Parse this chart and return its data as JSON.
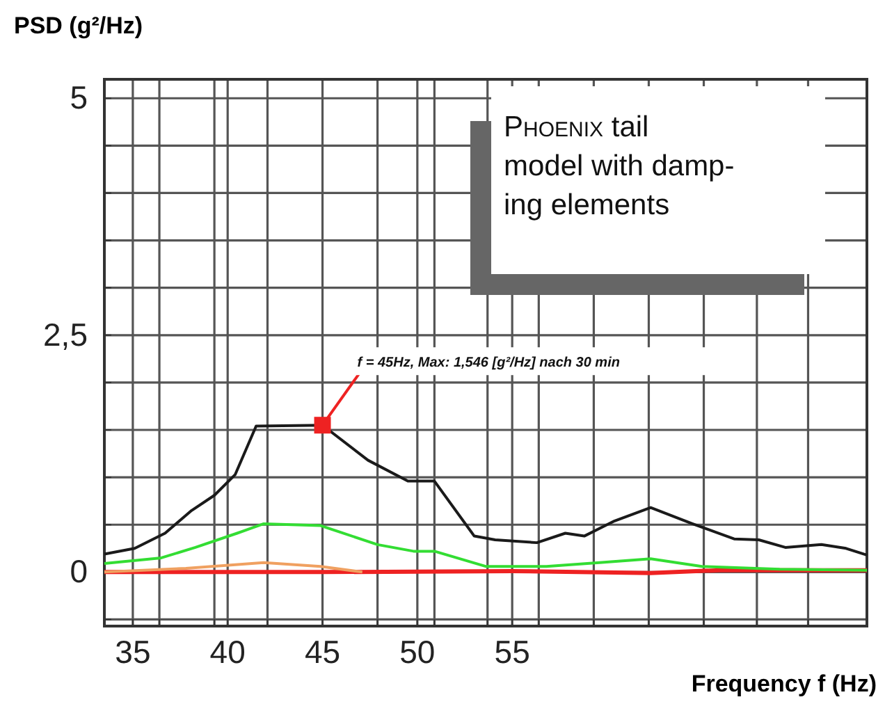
{
  "chart_data": {
    "type": "line",
    "xlabel": "Frequency f (Hz)",
    "ylabel": "PSD (g²/Hz)",
    "xlim": [
      33.5,
      73.7
    ],
    "xticks": [
      {
        "value": 35,
        "label": "35"
      },
      {
        "value": 36.4,
        "label": null
      },
      {
        "value": 39.3,
        "label": null
      },
      {
        "value": 40,
        "label": "40"
      },
      {
        "value": 42.1,
        "label": null
      },
      {
        "value": 45,
        "label": "45"
      },
      {
        "value": 47.9,
        "label": null
      },
      {
        "value": 50,
        "label": "50"
      },
      {
        "value": 50.9,
        "label": null
      },
      {
        "value": 53.7,
        "label": null
      },
      {
        "value": 55,
        "label": "55"
      },
      {
        "value": 56.4,
        "label": null
      },
      {
        "value": 59.3,
        "label": null
      },
      {
        "value": 62.2,
        "label": null
      },
      {
        "value": 65.1,
        "label": null
      },
      {
        "value": 67.9,
        "label": null
      },
      {
        "value": 70.6,
        "label": null
      }
    ],
    "ylim": [
      -0.57,
      5.2
    ],
    "yticks": [
      {
        "value": -0.5,
        "label": null
      },
      {
        "value": 0,
        "label": "0"
      },
      {
        "value": 0.5,
        "label": null
      },
      {
        "value": 1,
        "label": null
      },
      {
        "value": 1.5,
        "label": null
      },
      {
        "value": 2,
        "label": null
      },
      {
        "value": 2.5,
        "label": "2,5"
      },
      {
        "value": 3,
        "label": null
      },
      {
        "value": 3.5,
        "label": null
      },
      {
        "value": 4,
        "label": null
      },
      {
        "value": 4.5,
        "label": null
      },
      {
        "value": 5,
        "label": "5"
      }
    ],
    "grid": true,
    "line_style": "solid",
    "marker": "none",
    "series": [
      {
        "color": "#1a1a1a",
        "x": [
          33.5,
          35.1,
          36.7,
          38.1,
          39.3,
          40.4,
          41.5,
          45,
          47.4,
          49.5,
          50.9,
          53.0,
          54.1,
          56.3,
          57.8,
          58.8,
          60.4,
          62.3,
          64.5,
          66.7,
          68.0,
          69.4,
          71.3,
          72.6,
          73.7
        ],
        "values": [
          0.19,
          0.25,
          0.41,
          0.65,
          0.81,
          1.03,
          1.54,
          1.55,
          1.18,
          0.96,
          0.96,
          0.38,
          0.34,
          0.31,
          0.41,
          0.38,
          0.54,
          0.68,
          0.51,
          0.35,
          0.34,
          0.26,
          0.29,
          0.25,
          0.18
        ]
      },
      {
        "color": "#33dd33",
        "x": [
          33.5,
          36.5,
          38.3,
          40.5,
          41.9,
          44.9,
          47.9,
          49.8,
          50.9,
          53.6,
          56.8,
          59.6,
          62.3,
          65.0,
          69.1,
          73.7
        ],
        "values": [
          0.09,
          0.15,
          0.26,
          0.41,
          0.51,
          0.49,
          0.29,
          0.22,
          0.22,
          0.06,
          0.06,
          0.1,
          0.14,
          0.06,
          0.03,
          0.02
        ]
      },
      {
        "color": "#f0a060",
        "x": [
          33.5,
          37.8,
          41.9,
          44.9,
          47.1
        ],
        "values": [
          0.0,
          0.04,
          0.1,
          0.06,
          0.0
        ]
      },
      {
        "color": "#ee2222",
        "x": [
          33.5,
          45,
          55,
          62.3,
          66,
          73.7
        ],
        "values": [
          0.0,
          0.0,
          0.01,
          -0.01,
          0.02,
          0.02
        ]
      }
    ],
    "annotations": [
      {
        "text": "f = 45Hz, Max: 1,546 [g²/Hz] nach 30 min",
        "x": 45,
        "y": 1.55
      },
      "Phoenix tail model with damp-ing elements"
    ]
  }
}
